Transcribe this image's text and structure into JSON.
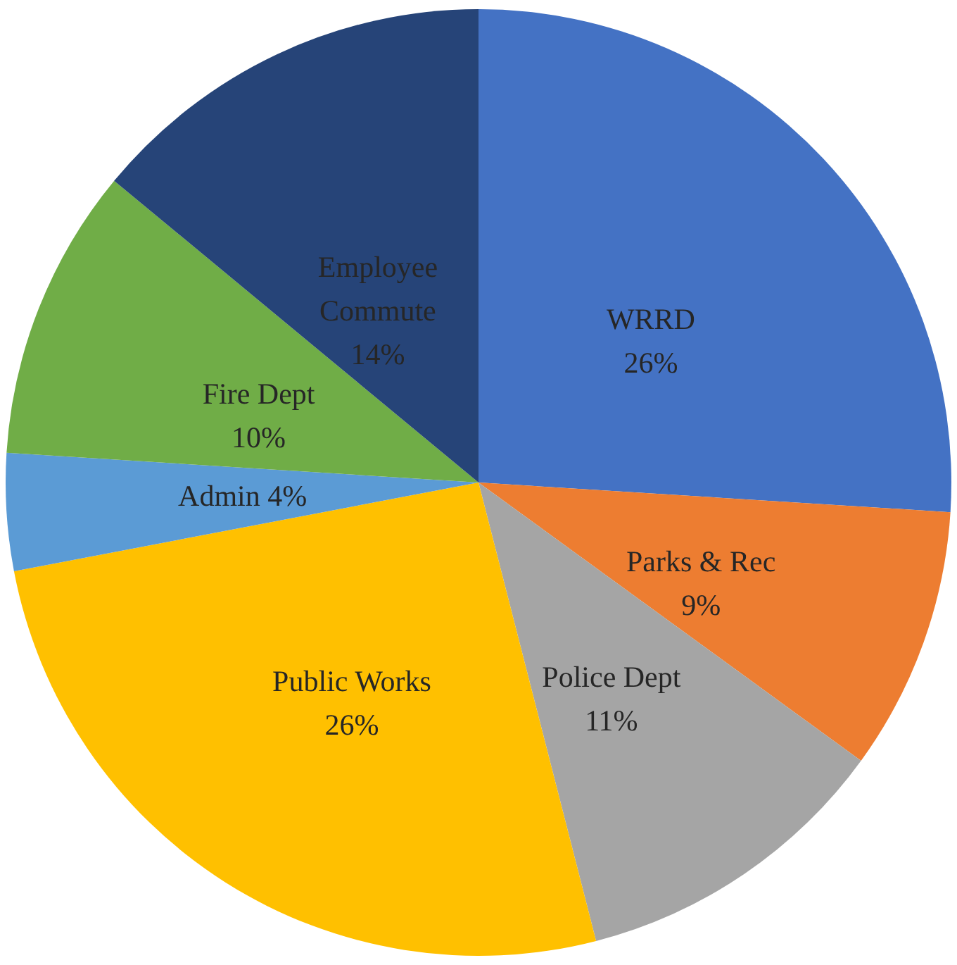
{
  "chart_data": {
    "type": "pie",
    "categories": [
      "WRRD",
      "Parks & Rec",
      "Police Dept",
      "Public Works",
      "Admin",
      "Fire Dept",
      "Employee Commute"
    ],
    "values": [
      26,
      9,
      11,
      26,
      4,
      10,
      14
    ],
    "value_labels": [
      "26%",
      "9%",
      "11%",
      "26%",
      "4%",
      "10%",
      "14%"
    ],
    "colors": [
      "#4472c4",
      "#ed7d31",
      "#a5a5a5",
      "#ffc000",
      "#5b9bd5",
      "#70ad47",
      "#264478"
    ]
  }
}
